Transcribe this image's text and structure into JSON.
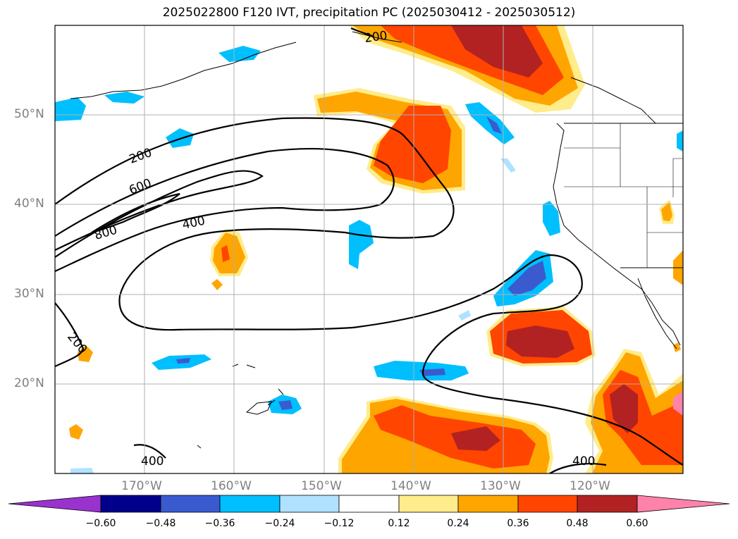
{
  "title": "2025022800 F120 IVT, precipitation PC (2025030412 - 2025030512)",
  "lat_labels": [
    "50°N",
    "40°N",
    "30°N",
    "20°N"
  ],
  "lon_labels": [
    "170°W",
    "160°W",
    "150°W",
    "140°W",
    "130°W",
    "120°W"
  ],
  "contour_labels": [
    "200",
    "200",
    "600",
    "400",
    "800",
    "200",
    "400",
    "400"
  ],
  "colorbar": {
    "ticks": [
      "−0.60",
      "−0.48",
      "−0.36",
      "−0.24",
      "−0.12",
      "0.12",
      "0.24",
      "0.36",
      "0.48",
      "0.60"
    ],
    "colors": [
      "#9a32cd",
      "#00008b",
      "#3a5bd0",
      "#00bfff",
      "#b0e2ff",
      "#ffffff",
      "#ffec8b",
      "#ffa500",
      "#ff4500",
      "#b22222",
      "#ff82ab"
    ]
  },
  "colors": {
    "neg_light": "#b0e2ff",
    "neg_mid": "#00bfff",
    "neg_dark": "#3a5bd0",
    "pos_light": "#ffec8b",
    "pos_mid": "#ffa500",
    "pos_red": "#ff4500",
    "pos_dark": "#b22222",
    "pos_pink": "#ff82ab"
  }
}
